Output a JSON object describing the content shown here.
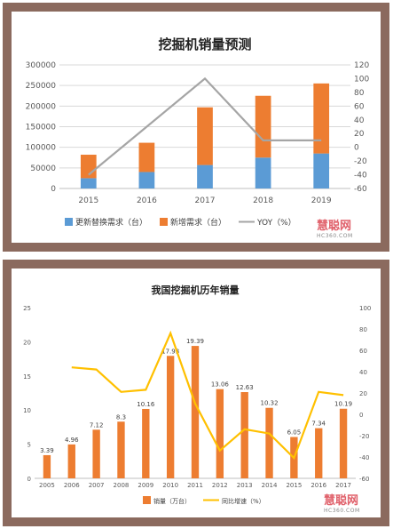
{
  "chart_data": [
    {
      "type": "bar",
      "title": "挖掘机销量预测",
      "categories": [
        "2015",
        "2016",
        "2017",
        "2018",
        "2019"
      ],
      "stacked": true,
      "series": [
        {
          "name": "更新替换需求（台）",
          "type": "bar",
          "color": "#5b9bd5",
          "values": [
            25000,
            40000,
            57000,
            75000,
            85000
          ]
        },
        {
          "name": "新增需求（台）",
          "type": "bar",
          "color": "#ed7d31",
          "values": [
            57000,
            71000,
            140000,
            150000,
            170000
          ]
        },
        {
          "name": "YOY（%）",
          "type": "line",
          "axis": "right",
          "color": "#a5a5a5",
          "values": [
            -40,
            30,
            100,
            10,
            10
          ]
        }
      ],
      "y_left": {
        "min": 0,
        "max": 300000,
        "ticks": [
          "0",
          "50000",
          "100000",
          "150000",
          "200000",
          "250000",
          "300000"
        ]
      },
      "y_right": {
        "min": -60,
        "max": 120,
        "ticks": [
          "-60",
          "-40",
          "-20",
          "0",
          "20",
          "40",
          "60",
          "80",
          "100",
          "120"
        ]
      },
      "legend_position": "bottom",
      "grid": true
    },
    {
      "type": "bar",
      "title": "我国挖掘机历年销量",
      "categories": [
        "2005",
        "2006",
        "2007",
        "2008",
        "2009",
        "2010",
        "2011",
        "2012",
        "2013",
        "2014",
        "2015",
        "2016",
        "2017"
      ],
      "series": [
        {
          "name": "销量（万台）",
          "type": "bar",
          "color": "#ed7d31",
          "values": [
            3.39,
            4.96,
            7.12,
            8.3,
            10.16,
            17.93,
            19.39,
            13.06,
            12.63,
            10.32,
            6.05,
            7.34,
            10.19
          ],
          "labels": [
            "3.39",
            "4.96",
            "7.12",
            "8.3",
            "10.16",
            "17.93",
            "19.39",
            "13.06",
            "12.63",
            "10.32",
            "6.05",
            "7.34",
            "10.19"
          ]
        },
        {
          "name": "同比增速（%）",
          "type": "line",
          "axis": "right",
          "color": "#ffc000",
          "values": [
            null,
            44,
            42,
            21,
            23,
            76,
            10,
            -34,
            -14,
            -18,
            -41,
            21,
            18
          ]
        }
      ],
      "y_left": {
        "min": 0,
        "max": 25,
        "ticks": [
          "0",
          "5",
          "10",
          "15",
          "20",
          "25"
        ]
      },
      "y_right": {
        "min": -60,
        "max": 100,
        "ticks": [
          "-60",
          "-40",
          "-20",
          "0",
          "20",
          "40",
          "60",
          "80",
          "100"
        ]
      },
      "legend_position": "bottom",
      "grid": false
    }
  ],
  "watermark": {
    "brand": "慧聪网",
    "site": "HC360.COM"
  }
}
